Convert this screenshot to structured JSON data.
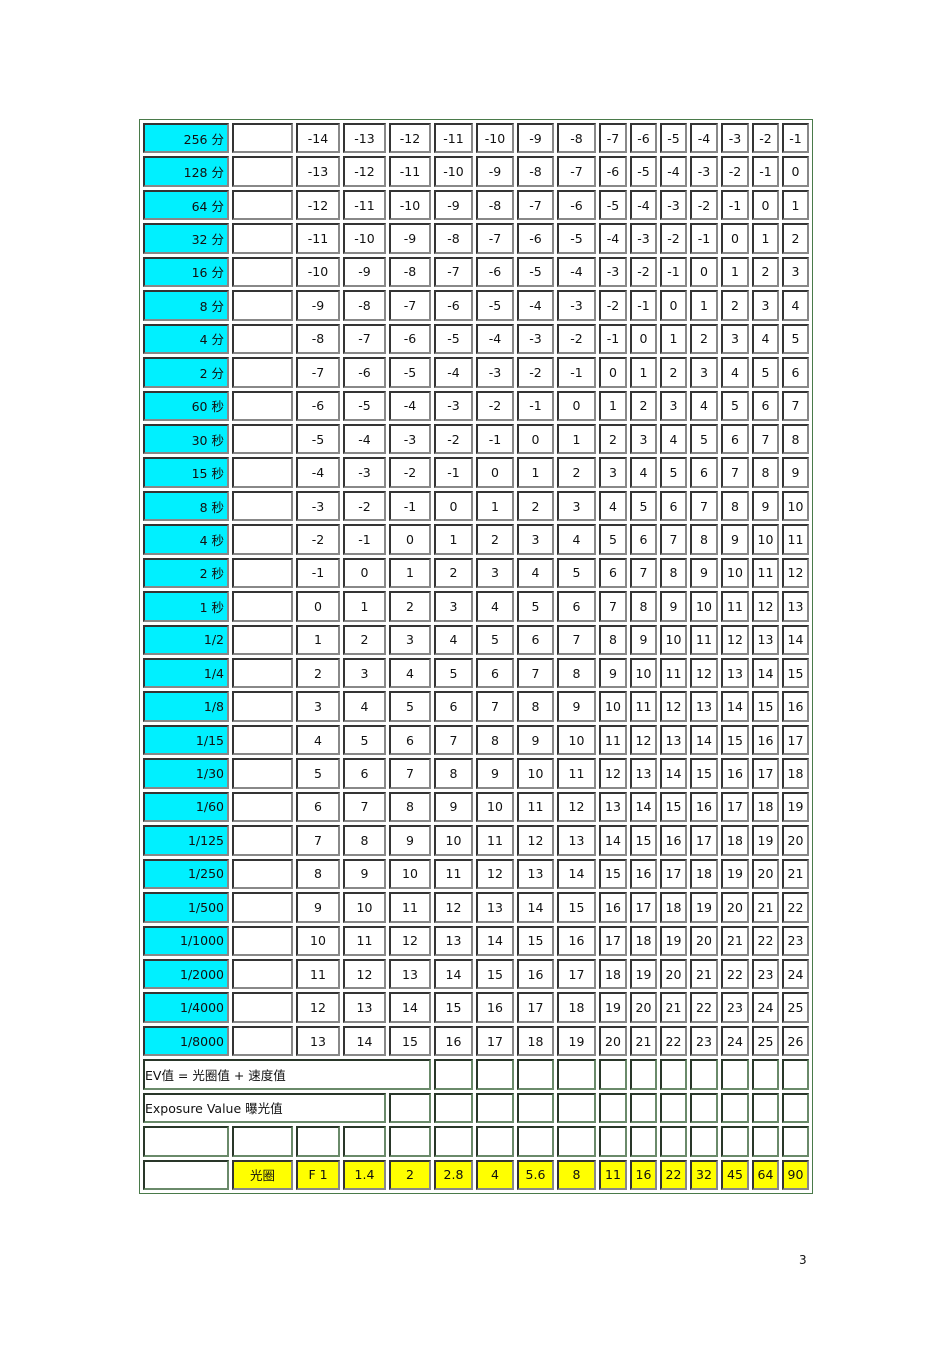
{
  "table": {
    "rows": [
      {
        "label": "256 分",
        "values": [
          -14,
          -13,
          -12,
          -11,
          -10,
          -9,
          -8,
          -7,
          -6,
          -5,
          -4,
          -3,
          -2,
          -1
        ]
      },
      {
        "label": "128 分",
        "values": [
          -13,
          -12,
          -11,
          -10,
          -9,
          -8,
          -7,
          -6,
          -5,
          -4,
          -3,
          -2,
          -1,
          0
        ]
      },
      {
        "label": "64 分",
        "values": [
          -12,
          -11,
          -10,
          -9,
          -8,
          -7,
          -6,
          -5,
          -4,
          -3,
          -2,
          -1,
          0,
          1
        ]
      },
      {
        "label": "32 分",
        "values": [
          -11,
          -10,
          -9,
          -8,
          -7,
          -6,
          -5,
          -4,
          -3,
          -2,
          -1,
          0,
          1,
          2
        ]
      },
      {
        "label": "16 分",
        "values": [
          -10,
          -9,
          -8,
          -7,
          -6,
          -5,
          -4,
          -3,
          -2,
          -1,
          0,
          1,
          2,
          3
        ]
      },
      {
        "label": "8 分",
        "values": [
          -9,
          -8,
          -7,
          -6,
          -5,
          -4,
          -3,
          -2,
          -1,
          0,
          1,
          2,
          3,
          4
        ]
      },
      {
        "label": "4 分",
        "values": [
          -8,
          -7,
          -6,
          -5,
          -4,
          -3,
          -2,
          -1,
          0,
          1,
          2,
          3,
          4,
          5
        ]
      },
      {
        "label": "2 分",
        "values": [
          -7,
          -6,
          -5,
          -4,
          -3,
          -2,
          -1,
          0,
          1,
          2,
          3,
          4,
          5,
          6
        ]
      },
      {
        "label": "60 秒",
        "values": [
          -6,
          -5,
          -4,
          -3,
          -2,
          -1,
          0,
          1,
          2,
          3,
          4,
          5,
          6,
          7
        ]
      },
      {
        "label": "30 秒",
        "values": [
          -5,
          -4,
          -3,
          -2,
          -1,
          0,
          1,
          2,
          3,
          4,
          5,
          6,
          7,
          8
        ]
      },
      {
        "label": "15 秒",
        "values": [
          -4,
          -3,
          -2,
          -1,
          0,
          1,
          2,
          3,
          4,
          5,
          6,
          7,
          8,
          9
        ]
      },
      {
        "label": "8 秒",
        "values": [
          -3,
          -2,
          -1,
          0,
          1,
          2,
          3,
          4,
          5,
          6,
          7,
          8,
          9,
          10
        ]
      },
      {
        "label": "4 秒",
        "values": [
          -2,
          -1,
          0,
          1,
          2,
          3,
          4,
          5,
          6,
          7,
          8,
          9,
          10,
          11
        ]
      },
      {
        "label": "2 秒",
        "values": [
          -1,
          0,
          1,
          2,
          3,
          4,
          5,
          6,
          7,
          8,
          9,
          10,
          11,
          12
        ]
      },
      {
        "label": "1 秒",
        "values": [
          0,
          1,
          2,
          3,
          4,
          5,
          6,
          7,
          8,
          9,
          10,
          11,
          12,
          13
        ]
      },
      {
        "label": "1/2",
        "values": [
          1,
          2,
          3,
          4,
          5,
          6,
          7,
          8,
          9,
          10,
          11,
          12,
          13,
          14
        ]
      },
      {
        "label": "1/4",
        "values": [
          2,
          3,
          4,
          5,
          6,
          7,
          8,
          9,
          10,
          11,
          12,
          13,
          14,
          15
        ]
      },
      {
        "label": "1/8",
        "values": [
          3,
          4,
          5,
          6,
          7,
          8,
          9,
          10,
          11,
          12,
          13,
          14,
          15,
          16
        ]
      },
      {
        "label": "1/15",
        "values": [
          4,
          5,
          6,
          7,
          8,
          9,
          10,
          11,
          12,
          13,
          14,
          15,
          16,
          17
        ]
      },
      {
        "label": "1/30",
        "values": [
          5,
          6,
          7,
          8,
          9,
          10,
          11,
          12,
          13,
          14,
          15,
          16,
          17,
          18
        ]
      },
      {
        "label": "1/60",
        "values": [
          6,
          7,
          8,
          9,
          10,
          11,
          12,
          13,
          14,
          15,
          16,
          17,
          18,
          19
        ]
      },
      {
        "label": "1/125",
        "values": [
          7,
          8,
          9,
          10,
          11,
          12,
          13,
          14,
          15,
          16,
          17,
          18,
          19,
          20
        ]
      },
      {
        "label": "1/250",
        "values": [
          8,
          9,
          10,
          11,
          12,
          13,
          14,
          15,
          16,
          17,
          18,
          19,
          20,
          21
        ]
      },
      {
        "label": "1/500",
        "values": [
          9,
          10,
          11,
          12,
          13,
          14,
          15,
          16,
          17,
          18,
          19,
          20,
          21,
          22
        ]
      },
      {
        "label": "1/1000",
        "values": [
          10,
          11,
          12,
          13,
          14,
          15,
          16,
          17,
          18,
          19,
          20,
          21,
          22,
          23
        ]
      },
      {
        "label": "1/2000",
        "values": [
          11,
          12,
          13,
          14,
          15,
          16,
          17,
          18,
          19,
          20,
          21,
          22,
          23,
          24
        ]
      },
      {
        "label": "1/4000",
        "values": [
          12,
          13,
          14,
          15,
          16,
          17,
          18,
          19,
          20,
          21,
          22,
          23,
          24,
          25
        ]
      },
      {
        "label": "1/8000",
        "values": [
          13,
          14,
          15,
          16,
          17,
          18,
          19,
          20,
          21,
          22,
          23,
          24,
          25,
          26
        ]
      }
    ],
    "formula": "EV值  =     光圈值   +     速度值",
    "exposure_value": "Exposure  Value       曝光值",
    "aperture_label": "光圈",
    "apertures": [
      "F 1",
      "1.4",
      "2",
      "2.8",
      "4",
      "5.6",
      "8",
      "11",
      "16",
      "22",
      "32",
      "45",
      "64",
      "90"
    ]
  },
  "colors": {
    "speed_label_bg": "#00f0ff",
    "aperture_bg": "#ffff00"
  },
  "page_number": "3"
}
